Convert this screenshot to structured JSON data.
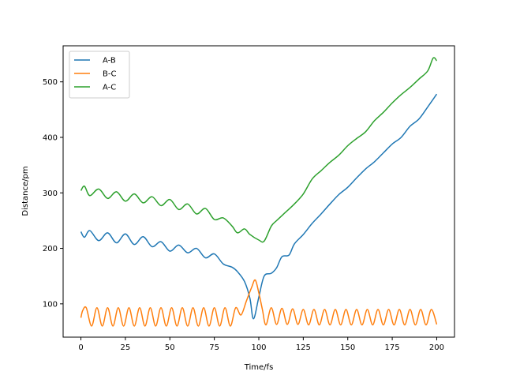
{
  "chart_data": {
    "type": "line",
    "xlabel": "Time/fs",
    "ylabel": "Distance/pm",
    "xlim": [
      -10,
      210
    ],
    "ylim": [
      40,
      565
    ],
    "xticks": [
      0,
      25,
      50,
      75,
      100,
      125,
      150,
      175,
      200
    ],
    "yticks": [
      100,
      200,
      300,
      400,
      500
    ],
    "grid": false,
    "legend_position": "upper-left",
    "series": [
      {
        "name": "A-B",
        "color": "#1f77b4",
        "x": [
          0,
          2,
          5,
          10,
          15,
          20,
          25,
          30,
          35,
          40,
          45,
          50,
          55,
          60,
          65,
          70,
          75,
          80,
          85,
          88,
          92,
          95,
          97,
          100,
          103,
          107,
          110,
          113,
          117,
          120,
          125,
          130,
          135,
          140,
          145,
          150,
          155,
          160,
          165,
          170,
          175,
          180,
          185,
          190,
          195,
          200
        ],
        "y": [
          230,
          220,
          232,
          214,
          228,
          210,
          226,
          207,
          221,
          203,
          212,
          195,
          206,
          192,
          200,
          183,
          190,
          172,
          166,
          158,
          140,
          110,
          73,
          112,
          150,
          155,
          165,
          185,
          188,
          208,
          225,
          245,
          262,
          280,
          297,
          310,
          327,
          343,
          356,
          372,
          388,
          400,
          420,
          433,
          455,
          478
        ]
      },
      {
        "name": "B-C",
        "color": "#ff7f0e",
        "x": [
          0,
          1,
          3,
          6,
          9,
          12,
          15,
          18,
          21,
          24,
          27,
          30,
          33,
          36,
          39,
          42,
          45,
          48,
          51,
          54,
          57,
          60,
          63,
          66,
          69,
          72,
          75,
          78,
          81,
          84,
          87,
          90,
          93,
          96,
          98,
          100,
          102,
          104,
          107,
          110,
          113,
          116,
          119,
          122,
          125,
          128,
          131,
          134,
          137,
          140,
          143,
          146,
          149,
          152,
          155,
          158,
          161,
          164,
          167,
          170,
          173,
          176,
          179,
          182,
          185,
          188,
          191,
          194,
          197,
          200
        ],
        "y": [
          75,
          88,
          93,
          60,
          93,
          60,
          93,
          60,
          93,
          60,
          93,
          60,
          93,
          60,
          93,
          60,
          93,
          60,
          93,
          60,
          93,
          60,
          93,
          60,
          93,
          60,
          93,
          60,
          93,
          60,
          93,
          80,
          105,
          130,
          143,
          120,
          90,
          62,
          93,
          63,
          92,
          63,
          91,
          63,
          90,
          62,
          90,
          62,
          90,
          62,
          90,
          62,
          90,
          62,
          90,
          62,
          90,
          62,
          90,
          62,
          90,
          62,
          90,
          62,
          90,
          62,
          90,
          62,
          90,
          63
        ]
      },
      {
        "name": "A-C",
        "color": "#2ca02c",
        "x": [
          0,
          2,
          5,
          10,
          15,
          20,
          25,
          30,
          35,
          40,
          45,
          50,
          55,
          60,
          65,
          70,
          75,
          80,
          85,
          88,
          92,
          95,
          100,
          103,
          107,
          110,
          115,
          120,
          125,
          130,
          135,
          140,
          145,
          150,
          155,
          160,
          165,
          170,
          175,
          180,
          185,
          190,
          195,
          198,
          200
        ],
        "y": [
          304,
          312,
          295,
          307,
          290,
          302,
          285,
          298,
          282,
          293,
          277,
          288,
          270,
          280,
          262,
          272,
          252,
          255,
          240,
          228,
          235,
          225,
          215,
          213,
          240,
          250,
          265,
          280,
          298,
          325,
          340,
          355,
          368,
          385,
          398,
          410,
          430,
          445,
          462,
          477,
          490,
          505,
          520,
          543,
          538
        ]
      }
    ]
  }
}
